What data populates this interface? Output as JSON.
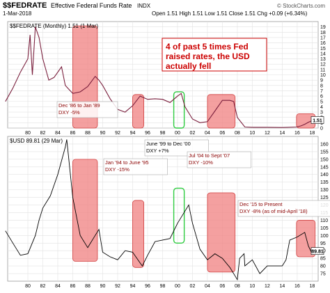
{
  "header": {
    "symbol": "$$FEDRATE",
    "name": "Effective Federal Funds Rate",
    "exchange": "INDX",
    "date": "1-Mar-2018",
    "quote": "Open 1.51  High 1.51  Low 1.51  Close 1.51  Chg +0.09 (+6.34%)",
    "copyright": "© StockCharts.com"
  },
  "chart_data": [
    {
      "type": "line",
      "panel": "top",
      "legend": "$$FEDRATE (Monthly) 1.51 (1 Mar)",
      "series": [
        {
          "name": "$$FEDRATE",
          "x": [
            1977,
            1978,
            1979,
            1980,
            1980.3,
            1980.6,
            1981,
            1981.5,
            1982,
            1982.8,
            1983.5,
            1984.5,
            1985,
            1986,
            1987,
            1988,
            1989,
            1989.5,
            1990,
            1991,
            1992,
            1993,
            1994,
            1995,
            1996,
            1997,
            1998,
            1999,
            2000,
            2000.5,
            2001,
            2002,
            2003,
            2004,
            2005,
            2006,
            2007,
            2007.5,
            2008,
            2009,
            2010,
            2012,
            2014,
            2015.9,
            2016.5,
            2017,
            2017.5,
            2018.2
          ],
          "values": [
            5.0,
            7.5,
            10.5,
            13,
            17.5,
            10,
            19,
            17,
            13,
            9,
            9.5,
            11.5,
            8,
            6.5,
            6.8,
            7.8,
            9.7,
            9,
            8,
            5.5,
            3.5,
            3,
            4.2,
            6,
            5.4,
            5.5,
            5.4,
            4.8,
            6.0,
            6.5,
            4.0,
            1.7,
            1.0,
            1.2,
            3.2,
            5.2,
            5.2,
            5.0,
            2.0,
            0.2,
            0.15,
            0.15,
            0.1,
            0.2,
            0.4,
            0.7,
            1.1,
            1.51
          ]
        }
      ],
      "last_value_label": "1.51",
      "y_ticks": [
        "0",
        "1",
        "2",
        "3",
        "4",
        "5",
        "6",
        "7",
        "8",
        "9",
        "10",
        "11",
        "12",
        "13",
        "14",
        "15",
        "16",
        "17",
        "18",
        "19"
      ],
      "x_ticks": [
        "80",
        "82",
        "84",
        "86",
        "88",
        "90",
        "92",
        "94",
        "96",
        "98",
        "00",
        "02",
        "04",
        "06",
        "08",
        "10",
        "12",
        "14",
        "16",
        "18"
      ],
      "ylim": [
        0,
        20
      ]
    },
    {
      "type": "line",
      "panel": "bottom",
      "legend": "$USD 89.81 (29 Mar)",
      "series": [
        {
          "name": "$USD",
          "x": [
            1977,
            1978,
            1979,
            1980,
            1981,
            1981.5,
            1982,
            1983,
            1984,
            1985,
            1985.2,
            1986,
            1987,
            1988,
            1989,
            1989.5,
            1990,
            1991,
            1992,
            1993,
            1994,
            1995,
            1995.3,
            1996,
            1997,
            1998,
            1999,
            2000,
            2001,
            2001.5,
            2002,
            2003,
            2004,
            2005,
            2006,
            2007,
            2008,
            2008.3,
            2008.9,
            2009,
            2010,
            2011,
            2012,
            2013,
            2014,
            2014.5,
            2015,
            2016,
            2017,
            2017.5,
            2018,
            2018.25
          ],
          "values": [
            103,
            95,
            87,
            88,
            100,
            110,
            118,
            126,
            140,
            158,
            163,
            125,
            100,
            92,
            100,
            104,
            89,
            86,
            84,
            90,
            89,
            82,
            80,
            87,
            96,
            97,
            98,
            108,
            116,
            120,
            108,
            91,
            84,
            88,
            85,
            79,
            71,
            85,
            88,
            80,
            84,
            75,
            80,
            80,
            80,
            84,
            97,
            99,
            102,
            93,
            88,
            89.81
          ]
        }
      ],
      "last_value_label": "89.81",
      "y_ticks": [
        "75",
        "80",
        "85",
        "90",
        "95",
        "100",
        "105",
        "110",
        "115",
        "120",
        "125",
        "130",
        "135",
        "140",
        "145",
        "150",
        "155",
        "160"
      ],
      "x_ticks": [
        "80",
        "82",
        "84",
        "86",
        "88",
        "90",
        "92",
        "94",
        "96",
        "98",
        "00",
        "02",
        "04",
        "06",
        "08",
        "10",
        "12",
        "14",
        "16",
        "18"
      ],
      "ylim": [
        70,
        165
      ]
    }
  ],
  "highlights": [
    {
      "id": "h1",
      "start": 1986.0,
      "end": 1989.3,
      "color": "#f08080",
      "top_label": "Dec '86 to Jan '89\nDXY -5%",
      "bottom_label": ""
    },
    {
      "id": "h2",
      "start": 1994.0,
      "end": 1995.5,
      "color": "#f08080",
      "top_label": "",
      "bottom_label": "Jan '94 to June '95\nDXY -15%"
    },
    {
      "id": "h3",
      "start": 1999.5,
      "end": 2000.9,
      "color": "#90ee90",
      "top_label": "",
      "bottom_label": "June '99 to Dec '00\nDXY +7%"
    },
    {
      "id": "h4",
      "start": 2004.0,
      "end": 2007.7,
      "color": "#f08080",
      "top_label": "",
      "bottom_label": "Jul '04 to Sept '07\nDXY -10%"
    },
    {
      "id": "h5",
      "start": 2015.9,
      "end": 2018.4,
      "color": "#f08080",
      "top_label": "",
      "bottom_label": "Dec '15 to Present\nDXY -8% (as of mid-April '18)"
    }
  ],
  "callout": "4 of past 5 times Fed\nraised rates, the USD\nactually fell"
}
